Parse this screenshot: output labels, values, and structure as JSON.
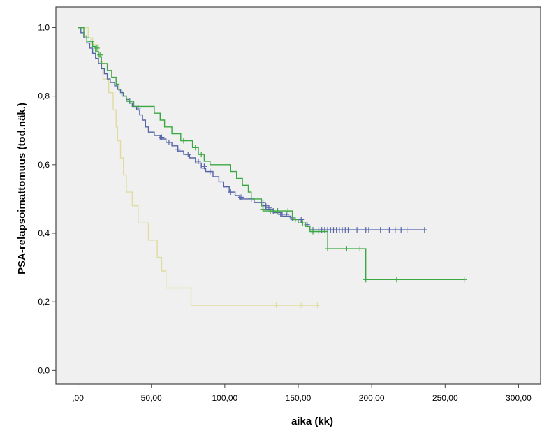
{
  "chart_data": {
    "type": "line",
    "step": true,
    "xlabel": "aika (kk)",
    "ylabel": "PSA-relapsoimattomuus (tod.näk.)",
    "xlim": [
      -15,
      315
    ],
    "ylim": [
      -0.04,
      1.06
    ],
    "x_ticks": [
      0,
      50,
      100,
      150,
      200,
      250,
      300
    ],
    "x_tick_labels": [
      ",00",
      "50,00",
      "100,00",
      "150,00",
      "200,00",
      "250,00",
      "300,00"
    ],
    "y_ticks": [
      0.0,
      0.2,
      0.4,
      0.6,
      0.8,
      1.0
    ],
    "y_tick_labels": [
      "0,0",
      "0,2",
      "0,4",
      "0,6",
      "0,8",
      "1,0"
    ],
    "grid": false,
    "plot_background": "#f0f0f0",
    "series": [
      {
        "color": "#e0dca0",
        "points": [
          [
            0,
            1.0
          ],
          [
            7,
            1.0
          ],
          [
            7,
            0.97
          ],
          [
            10,
            0.97
          ],
          [
            10,
            0.95
          ],
          [
            14,
            0.95
          ],
          [
            14,
            0.9
          ],
          [
            17,
            0.9
          ],
          [
            17,
            0.85
          ],
          [
            21,
            0.85
          ],
          [
            21,
            0.81
          ],
          [
            24,
            0.81
          ],
          [
            24,
            0.76
          ],
          [
            26,
            0.76
          ],
          [
            26,
            0.71
          ],
          [
            27,
            0.71
          ],
          [
            27,
            0.67
          ],
          [
            29,
            0.67
          ],
          [
            29,
            0.62
          ],
          [
            31,
            0.62
          ],
          [
            31,
            0.57
          ],
          [
            33,
            0.57
          ],
          [
            33,
            0.52
          ],
          [
            37,
            0.52
          ],
          [
            37,
            0.48
          ],
          [
            41,
            0.48
          ],
          [
            41,
            0.43
          ],
          [
            48,
            0.43
          ],
          [
            48,
            0.38
          ],
          [
            54,
            0.38
          ],
          [
            54,
            0.33
          ],
          [
            57,
            0.33
          ],
          [
            57,
            0.29
          ],
          [
            60,
            0.29
          ],
          [
            60,
            0.24
          ],
          [
            77,
            0.24
          ],
          [
            77,
            0.19
          ],
          [
            163,
            0.19
          ]
        ],
        "censored": [
          [
            135,
            0.19
          ],
          [
            152,
            0.19
          ],
          [
            163,
            0.19
          ]
        ]
      },
      {
        "color": "#5565a8",
        "points": [
          [
            0,
            1.0
          ],
          [
            2,
            1.0
          ],
          [
            2,
            0.985
          ],
          [
            4,
            0.985
          ],
          [
            4,
            0.97
          ],
          [
            6,
            0.97
          ],
          [
            6,
            0.955
          ],
          [
            8,
            0.955
          ],
          [
            8,
            0.94
          ],
          [
            10,
            0.94
          ],
          [
            10,
            0.925
          ],
          [
            12,
            0.925
          ],
          [
            12,
            0.91
          ],
          [
            14,
            0.91
          ],
          [
            14,
            0.895
          ],
          [
            16,
            0.895
          ],
          [
            16,
            0.88
          ],
          [
            18,
            0.88
          ],
          [
            18,
            0.865
          ],
          [
            20,
            0.865
          ],
          [
            20,
            0.85
          ],
          [
            22,
            0.85
          ],
          [
            22,
            0.84
          ],
          [
            25,
            0.84
          ],
          [
            25,
            0.83
          ],
          [
            27,
            0.83
          ],
          [
            27,
            0.82
          ],
          [
            29,
            0.82
          ],
          [
            29,
            0.81
          ],
          [
            31,
            0.81
          ],
          [
            31,
            0.8
          ],
          [
            33,
            0.8
          ],
          [
            33,
            0.79
          ],
          [
            35,
            0.79
          ],
          [
            35,
            0.78
          ],
          [
            37,
            0.78
          ],
          [
            37,
            0.77
          ],
          [
            40,
            0.77
          ],
          [
            40,
            0.76
          ],
          [
            42,
            0.76
          ],
          [
            42,
            0.745
          ],
          [
            44,
            0.745
          ],
          [
            44,
            0.73
          ],
          [
            46,
            0.73
          ],
          [
            46,
            0.71
          ],
          [
            48,
            0.71
          ],
          [
            48,
            0.695
          ],
          [
            52,
            0.695
          ],
          [
            52,
            0.685
          ],
          [
            56,
            0.685
          ],
          [
            56,
            0.675
          ],
          [
            60,
            0.675
          ],
          [
            60,
            0.665
          ],
          [
            64,
            0.665
          ],
          [
            64,
            0.655
          ],
          [
            68,
            0.655
          ],
          [
            68,
            0.64
          ],
          [
            72,
            0.64
          ],
          [
            72,
            0.63
          ],
          [
            76,
            0.63
          ],
          [
            76,
            0.62
          ],
          [
            80,
            0.62
          ],
          [
            80,
            0.605
          ],
          [
            84,
            0.605
          ],
          [
            84,
            0.59
          ],
          [
            87,
            0.59
          ],
          [
            87,
            0.58
          ],
          [
            92,
            0.58
          ],
          [
            92,
            0.565
          ],
          [
            96,
            0.565
          ],
          [
            96,
            0.55
          ],
          [
            99,
            0.55
          ],
          [
            99,
            0.535
          ],
          [
            103,
            0.535
          ],
          [
            103,
            0.52
          ],
          [
            107,
            0.52
          ],
          [
            107,
            0.51
          ],
          [
            110,
            0.51
          ],
          [
            110,
            0.5
          ],
          [
            120,
            0.5
          ],
          [
            120,
            0.49
          ],
          [
            125,
            0.49
          ],
          [
            125,
            0.48
          ],
          [
            128,
            0.48
          ],
          [
            128,
            0.47
          ],
          [
            133,
            0.47
          ],
          [
            133,
            0.46
          ],
          [
            139,
            0.46
          ],
          [
            139,
            0.45
          ],
          [
            145,
            0.45
          ],
          [
            145,
            0.44
          ],
          [
            152,
            0.44
          ],
          [
            152,
            0.43
          ],
          [
            156,
            0.43
          ],
          [
            156,
            0.42
          ],
          [
            158,
            0.42
          ],
          [
            158,
            0.41
          ],
          [
            236,
            0.41
          ]
        ],
        "censored": [
          [
            16,
            0.895
          ],
          [
            36,
            0.785
          ],
          [
            41,
            0.765
          ],
          [
            57,
            0.68
          ],
          [
            62,
            0.665
          ],
          [
            68,
            0.645
          ],
          [
            75,
            0.63
          ],
          [
            82,
            0.61
          ],
          [
            86,
            0.595
          ],
          [
            90,
            0.58
          ],
          [
            104,
            0.52
          ],
          [
            111,
            0.505
          ],
          [
            118,
            0.5
          ],
          [
            126,
            0.49
          ],
          [
            128,
            0.48
          ],
          [
            130,
            0.475
          ],
          [
            133,
            0.465
          ],
          [
            138,
            0.455
          ],
          [
            142,
            0.455
          ],
          [
            146,
            0.445
          ],
          [
            152,
            0.44
          ],
          [
            156,
            0.425
          ],
          [
            160,
            0.41
          ],
          [
            164,
            0.41
          ],
          [
            166,
            0.41
          ],
          [
            168,
            0.41
          ],
          [
            170,
            0.41
          ],
          [
            172,
            0.41
          ],
          [
            174,
            0.41
          ],
          [
            176,
            0.41
          ],
          [
            178,
            0.41
          ],
          [
            180,
            0.41
          ],
          [
            182,
            0.41
          ],
          [
            184,
            0.41
          ],
          [
            190,
            0.41
          ],
          [
            196,
            0.41
          ],
          [
            198,
            0.41
          ],
          [
            206,
            0.41
          ],
          [
            212,
            0.41
          ],
          [
            216,
            0.41
          ],
          [
            220,
            0.41
          ],
          [
            224,
            0.41
          ],
          [
            236,
            0.41
          ]
        ]
      },
      {
        "color": "#3aa840",
        "points": [
          [
            0,
            1.0
          ],
          [
            4,
            1.0
          ],
          [
            4,
            0.975
          ],
          [
            6,
            0.975
          ],
          [
            6,
            0.96
          ],
          [
            10,
            0.96
          ],
          [
            10,
            0.945
          ],
          [
            12,
            0.945
          ],
          [
            12,
            0.93
          ],
          [
            14,
            0.93
          ],
          [
            14,
            0.915
          ],
          [
            16,
            0.915
          ],
          [
            16,
            0.895
          ],
          [
            20,
            0.895
          ],
          [
            20,
            0.875
          ],
          [
            23,
            0.875
          ],
          [
            23,
            0.855
          ],
          [
            26,
            0.855
          ],
          [
            26,
            0.835
          ],
          [
            28,
            0.835
          ],
          [
            28,
            0.815
          ],
          [
            30,
            0.815
          ],
          [
            30,
            0.8
          ],
          [
            33,
            0.8
          ],
          [
            33,
            0.785
          ],
          [
            38,
            0.785
          ],
          [
            38,
            0.77
          ],
          [
            52,
            0.77
          ],
          [
            52,
            0.75
          ],
          [
            56,
            0.75
          ],
          [
            56,
            0.73
          ],
          [
            59,
            0.73
          ],
          [
            59,
            0.71
          ],
          [
            64,
            0.71
          ],
          [
            64,
            0.69
          ],
          [
            70,
            0.69
          ],
          [
            70,
            0.67
          ],
          [
            78,
            0.67
          ],
          [
            78,
            0.65
          ],
          [
            82,
            0.65
          ],
          [
            82,
            0.63
          ],
          [
            86,
            0.63
          ],
          [
            86,
            0.61
          ],
          [
            90,
            0.61
          ],
          [
            90,
            0.6
          ],
          [
            104,
            0.6
          ],
          [
            104,
            0.58
          ],
          [
            108,
            0.58
          ],
          [
            108,
            0.56
          ],
          [
            112,
            0.56
          ],
          [
            112,
            0.54
          ],
          [
            116,
            0.54
          ],
          [
            116,
            0.52
          ],
          [
            118,
            0.52
          ],
          [
            118,
            0.5
          ],
          [
            125,
            0.5
          ],
          [
            125,
            0.48
          ],
          [
            126,
            0.48
          ],
          [
            126,
            0.465
          ],
          [
            146,
            0.465
          ],
          [
            146,
            0.44
          ],
          [
            150,
            0.44
          ],
          [
            150,
            0.43
          ],
          [
            155,
            0.43
          ],
          [
            155,
            0.42
          ],
          [
            158,
            0.42
          ],
          [
            158,
            0.405
          ],
          [
            170,
            0.405
          ],
          [
            170,
            0.355
          ],
          [
            196,
            0.355
          ],
          [
            196,
            0.265
          ],
          [
            263,
            0.265
          ]
        ],
        "censored": [
          [
            6,
            0.97
          ],
          [
            9,
            0.96
          ],
          [
            13,
            0.94
          ],
          [
            15,
            0.92
          ],
          [
            35,
            0.785
          ],
          [
            72,
            0.67
          ],
          [
            80,
            0.65
          ],
          [
            84,
            0.63
          ],
          [
            126,
            0.47
          ],
          [
            131,
            0.465
          ],
          [
            136,
            0.465
          ],
          [
            143,
            0.465
          ],
          [
            148,
            0.44
          ],
          [
            153,
            0.43
          ],
          [
            160,
            0.405
          ],
          [
            164,
            0.405
          ],
          [
            170,
            0.355
          ],
          [
            183,
            0.355
          ],
          [
            192,
            0.355
          ],
          [
            196,
            0.265
          ],
          [
            217,
            0.265
          ],
          [
            263,
            0.265
          ]
        ]
      }
    ]
  }
}
